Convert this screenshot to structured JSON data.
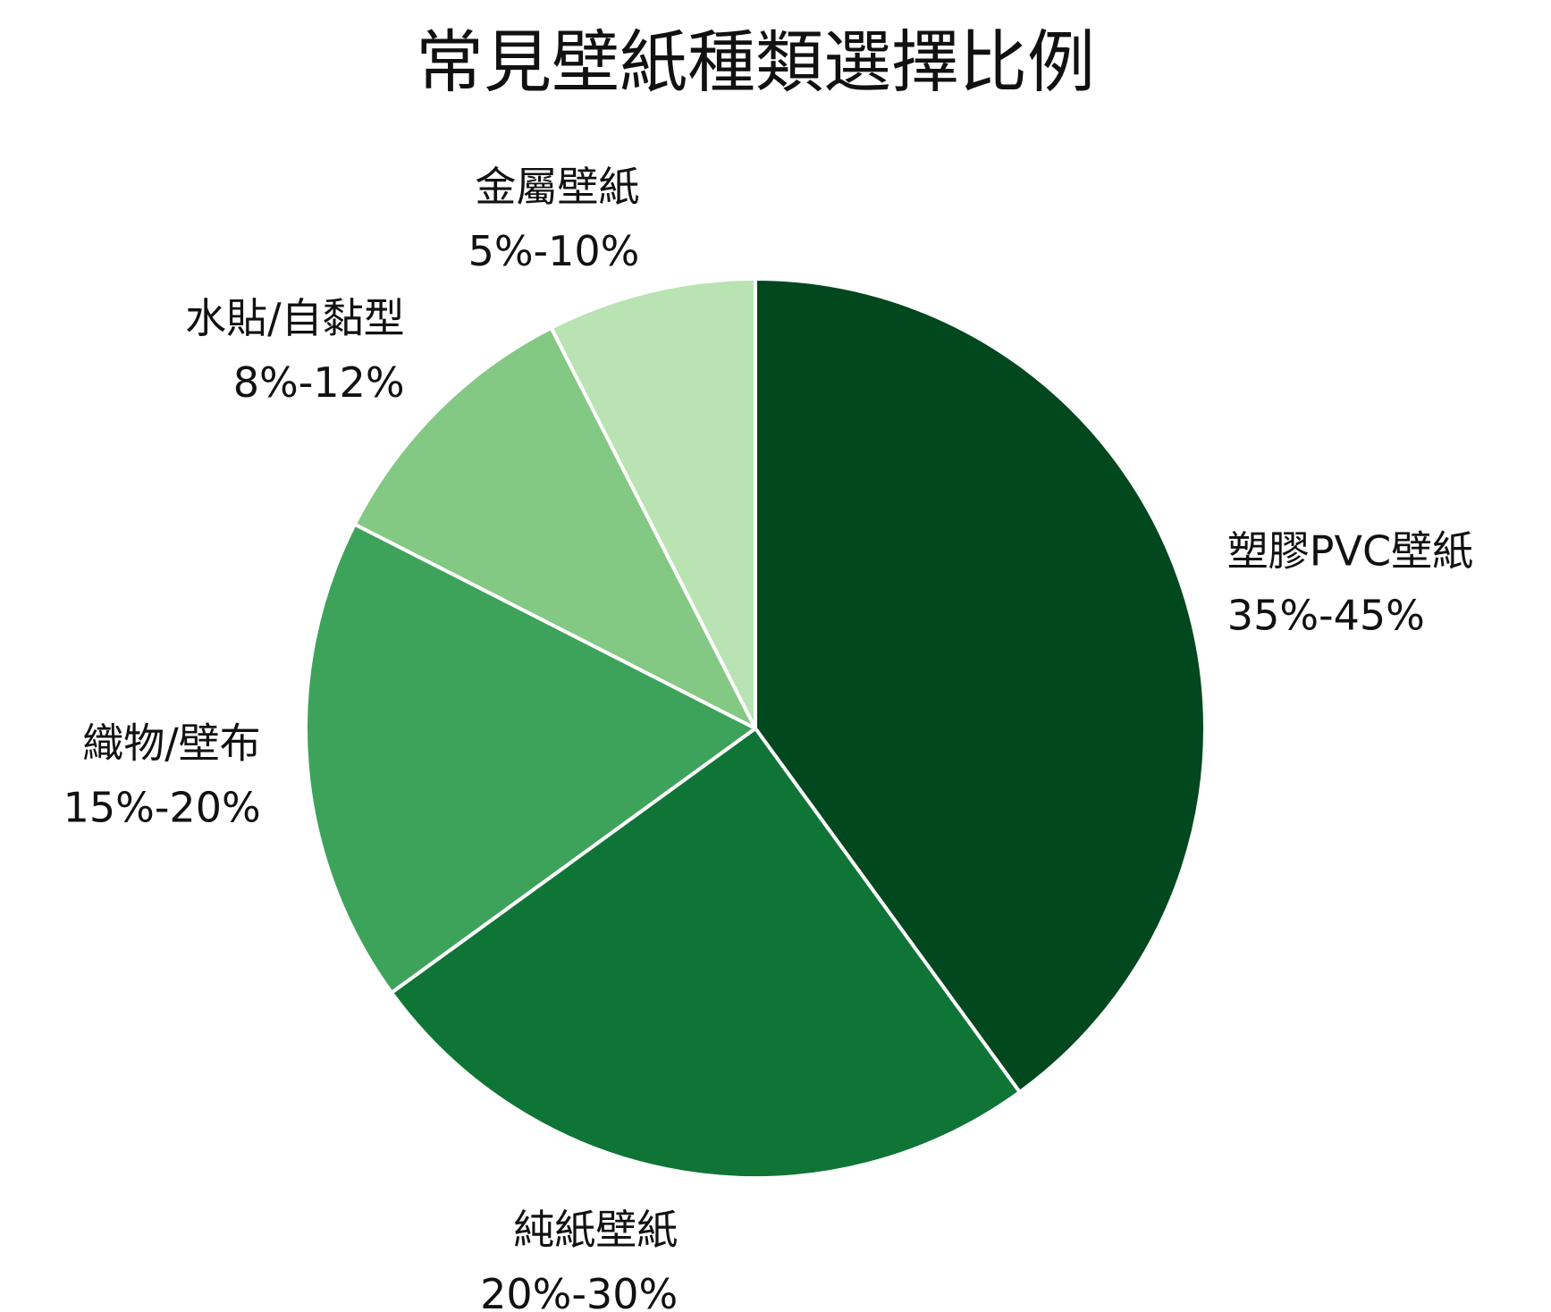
{
  "chart_data": {
    "type": "pie",
    "title": "常見壁紙種類選擇比例",
    "start_angle": "12 o'clock",
    "direction": "clockwise",
    "slices": [
      {
        "name": "塑膠PVC壁紙",
        "range": "35%-45%",
        "value": 40,
        "color": "#02481e"
      },
      {
        "name": "純紙壁紙",
        "range": "20%-30%",
        "value": 25,
        "color": "#0f7536"
      },
      {
        "name": "織物/壁布",
        "range": "15%-20%",
        "value": 17.5,
        "color": "#3ea35a"
      },
      {
        "name": "水貼/自黏型",
        "range": "8%-12%",
        "value": 10,
        "color": "#83c883"
      },
      {
        "name": "金屬壁紙",
        "range": "5%-10%",
        "value": 7.5,
        "color": "#b9e3b2"
      }
    ]
  }
}
